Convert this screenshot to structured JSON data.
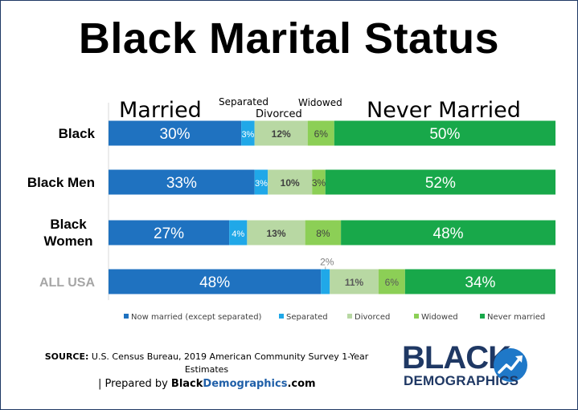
{
  "title": "Black Marital Status",
  "colors": {
    "Now married (except separated)": "#1f72c0",
    "Separated": "#20a8e8",
    "Divorced": "#b8d8a3",
    "Widowed": "#8ccf56",
    "Never married": "#18a84a"
  },
  "chart_data": {
    "type": "bar",
    "stacked": true,
    "orientation": "horizontal",
    "categories": [
      "Black",
      "Black Men",
      "Black Women",
      "ALL USA"
    ],
    "series": [
      {
        "name": "Now married (except separated)",
        "values": [
          30,
          33,
          27,
          48
        ]
      },
      {
        "name": "Separated",
        "values": [
          3,
          3,
          4,
          2
        ]
      },
      {
        "name": "Divorced",
        "values": [
          12,
          10,
          13,
          11
        ]
      },
      {
        "name": "Widowed",
        "values": [
          6,
          3,
          8,
          6
        ]
      },
      {
        "name": "Never married",
        "values": [
          50,
          52,
          48,
          34
        ]
      }
    ],
    "unit": "%",
    "legend_position": "bottom",
    "column_headers": {
      "married": "Married",
      "separated": "Separated",
      "divorced": "Divorced",
      "widowed": "Widowed",
      "never_married": "Never Married"
    }
  },
  "source": {
    "label": "SOURCE:",
    "text": "U.S. Census Bureau, 2019 American Community Survey 1-Year Estimates"
  },
  "prepared_by": {
    "prefix": "| Prepared by ",
    "brand_a": "Black",
    "brand_b": "Demographics",
    "brand_c": ".com"
  },
  "logo": {
    "line1": "BLACK",
    "line2": "DEMOGRAPHICS",
    "icon": "trend-up-arrow-icon"
  }
}
